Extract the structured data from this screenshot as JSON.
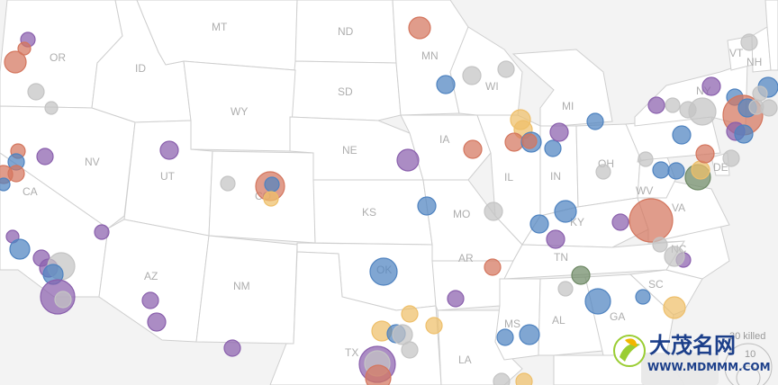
{
  "map": {
    "state_labels": [
      "OR",
      "ID",
      "MT",
      "ND",
      "MN",
      "SD",
      "WY",
      "WI",
      "MI",
      "NV",
      "CA",
      "UT",
      "NE",
      "IA",
      "IL",
      "IN",
      "OH",
      "CO",
      "KS",
      "MO",
      "KY",
      "WV",
      "VA",
      "AZ",
      "NM",
      "OK",
      "AR",
      "TN",
      "NC",
      "SC",
      "GA",
      "AL",
      "MS",
      "TX",
      "LA",
      "VT",
      "NH",
      "NY",
      "DE"
    ],
    "colors": {
      "purple": "#8a60ad",
      "blue": "#4f83c0",
      "red": "#d4765e",
      "gray": "#c4c4c4",
      "yellow": "#eebf6a",
      "green": "#6f8a66"
    }
  },
  "legend": {
    "title": "30 killed",
    "value": "10"
  },
  "watermark": {
    "title": "大茂名网",
    "url": "WWW.MDMMM.COM"
  }
}
